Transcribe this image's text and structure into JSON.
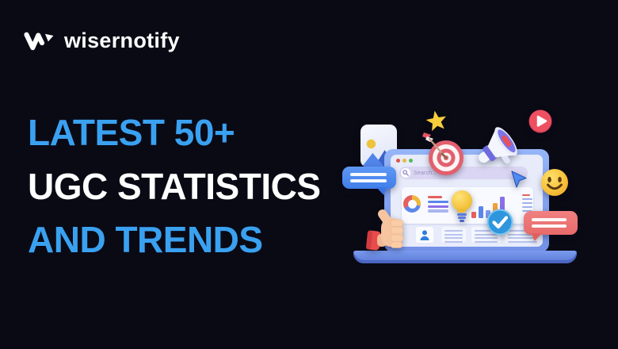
{
  "brand": {
    "logo_text": "wisernotify"
  },
  "headline": {
    "line1": "LATEST 50+",
    "line2": "UGC STATISTICS",
    "line3": "AND TRENDS"
  },
  "colors": {
    "background": "#0a0a15",
    "headline_blue": "#3aa1f0",
    "headline_white": "#ffffff"
  },
  "illustration": {
    "search_placeholder": "Search...",
    "browser_dots": [
      "#e0534a",
      "#e8b93c",
      "#58b85c"
    ],
    "palette": {
      "bubble_blue": "#3f7eea",
      "bubble_red": "#e86a6a",
      "star_yellow": "#f6cd3b",
      "emoji_yellow": "#f8c33c",
      "play_red": "#ee5062",
      "check_blue": "#2f96dd",
      "bulb_yellow": "#f3c43d",
      "target_red": "#e2606e",
      "megaphone_purple": "#7a76e8",
      "thumb_skin": "#f6c49e",
      "cuff_red": "#e84b4b"
    },
    "icons": [
      "photo",
      "star",
      "dart-target",
      "megaphone",
      "play-button",
      "smile-emoji",
      "chat-bubble-blue",
      "chat-bubble-red",
      "thumbs-up",
      "lightbulb",
      "check-badge",
      "cursor",
      "user-avatar"
    ],
    "chart": {
      "donut_segments": [
        {
          "color": "#f0b73c",
          "deg": 105
        },
        {
          "color": "#5b87ea",
          "deg": 135
        },
        {
          "color": "#e4605f",
          "deg": 120
        }
      ],
      "bars": [
        {
          "color": "#e4605f",
          "value": 8
        },
        {
          "color": "#5b87ea",
          "value": 15
        },
        {
          "color": "#7d9bee",
          "value": 10
        },
        {
          "color": "#f0a23c",
          "value": 19
        },
        {
          "color": "#8a6fe8",
          "value": 27
        }
      ],
      "legend_lines": [
        "#e4605f",
        "#5b87ea",
        "#8a6fe8",
        "#aab6ee"
      ],
      "side_lines": [
        "#e4605f",
        "#9fb0ec",
        "#9fb0ec",
        "#9fb0ec",
        "#9fb0ec"
      ]
    }
  }
}
